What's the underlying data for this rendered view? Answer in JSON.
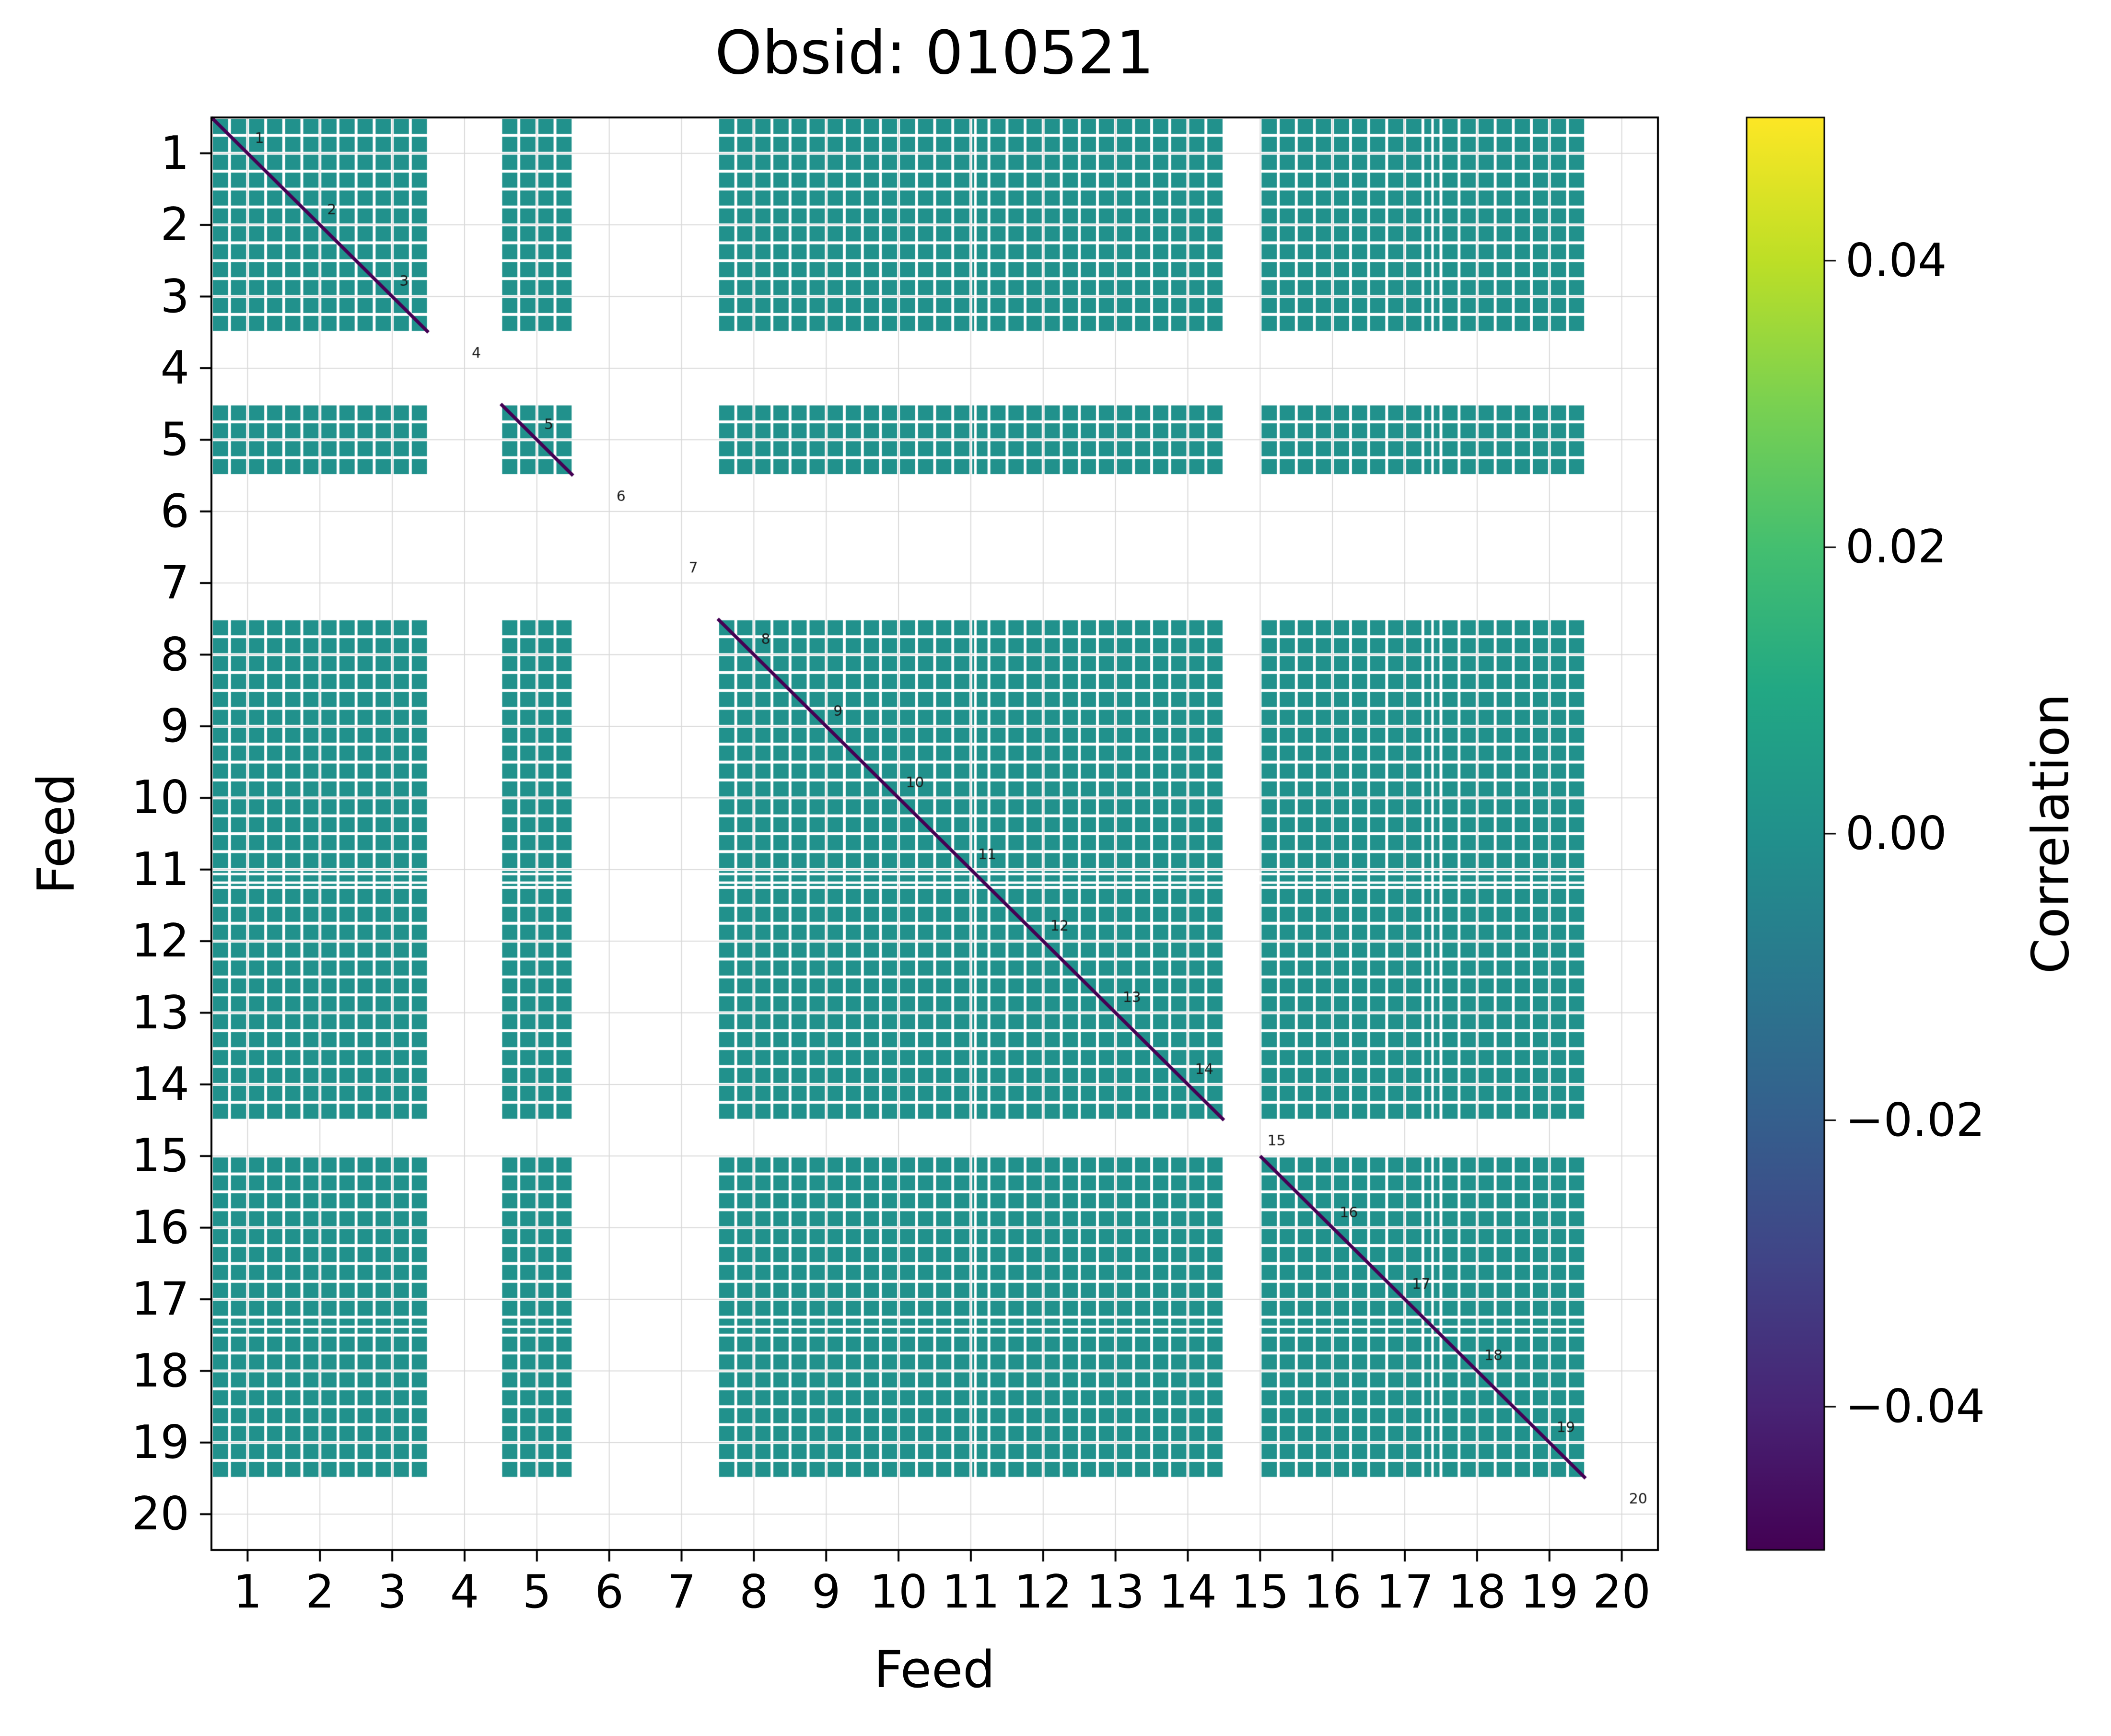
{
  "chart_data": {
    "type": "heatmap",
    "title": "Obsid: 010521",
    "xlabel": "Feed",
    "ylabel": "Feed",
    "n_feeds": 20,
    "subbands_per_feed": 4,
    "x_tick_labels": [
      "1",
      "2",
      "3",
      "4",
      "5",
      "6",
      "7",
      "8",
      "9",
      "10",
      "11",
      "12",
      "13",
      "14",
      "15",
      "16",
      "17",
      "18",
      "19",
      "20"
    ],
    "y_tick_labels": [
      "1",
      "2",
      "3",
      "4",
      "5",
      "6",
      "7",
      "8",
      "9",
      "10",
      "11",
      "12",
      "13",
      "14",
      "15",
      "16",
      "17",
      "18",
      "19",
      "20"
    ],
    "present_feeds_full": [
      1,
      2,
      3,
      5,
      8,
      9,
      10,
      11,
      12,
      13,
      14,
      16,
      17,
      18,
      19
    ],
    "partial_feeds": {
      "15": [
        3,
        4
      ]
    },
    "missing_feeds": [
      4,
      6,
      7,
      20
    ],
    "offdiagonal_value_approx": 0.0,
    "diagonal_annotations": [
      "1",
      "2",
      "3",
      "4",
      "5",
      "6",
      "7",
      "8",
      "9",
      "10",
      "11",
      "12",
      "13",
      "14",
      "15",
      "16",
      "17",
      "18",
      "19",
      "20"
    ],
    "cell_color": "#21918c",
    "diagonal_color": "#440154",
    "dropout_rows": [
      10.56,
      10.68,
      16.88
    ],
    "dropout_cols": [
      10.56,
      16.88
    ],
    "colorbar": {
      "label": "Correlation",
      "vmin": -0.05,
      "vmax": 0.05,
      "tick_labels": [
        "0.04",
        "0.02",
        "0.00",
        "−0.02",
        "−0.04"
      ],
      "tick_values": [
        0.04,
        0.02,
        0.0,
        -0.02,
        -0.04
      ],
      "colormap": "viridis",
      "legend_position": "right"
    },
    "grid": true,
    "axis_range": [
      0,
      20
    ]
  },
  "colors": {
    "background": "#ffffff",
    "grid": "#d9d9d9",
    "spine": "#000000",
    "annotation": "#1a1a1a",
    "viridis_stops": [
      [
        0.0,
        "#440154"
      ],
      [
        0.1,
        "#482475"
      ],
      [
        0.2,
        "#414487"
      ],
      [
        0.3,
        "#355f8d"
      ],
      [
        0.4,
        "#2a788e"
      ],
      [
        0.5,
        "#21918c"
      ],
      [
        0.6,
        "#22a884"
      ],
      [
        0.7,
        "#44bf70"
      ],
      [
        0.8,
        "#7ad151"
      ],
      [
        0.9,
        "#bddf26"
      ],
      [
        1.0,
        "#fde725"
      ]
    ]
  }
}
